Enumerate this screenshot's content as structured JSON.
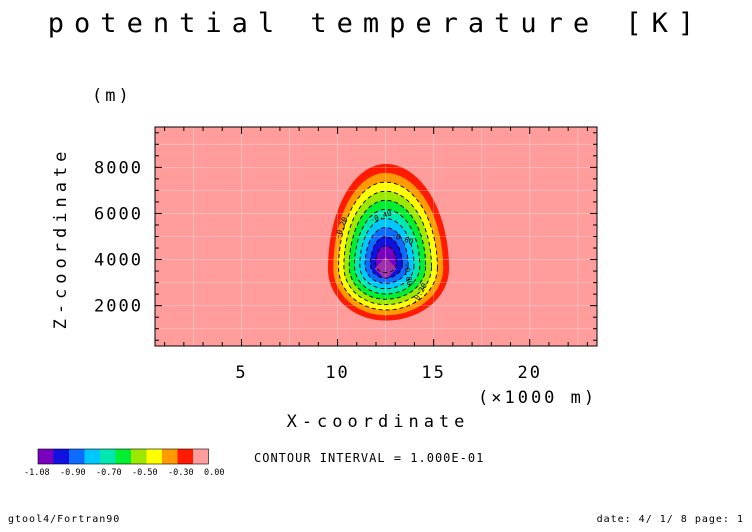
{
  "chart_data": {
    "type": "heatmap",
    "subtype": "filled-contour",
    "title": "potential temperature [K]",
    "xlabel": "X-coordinate",
    "ylabel": "Z-coordinate",
    "x_unit": "(×1000 m)",
    "y_unit": "(m)",
    "xlim": [
      0.5,
      23.5
    ],
    "ylim": [
      250,
      9750
    ],
    "x_ticks": [
      5,
      10,
      15,
      20
    ],
    "y_ticks": [
      2000,
      4000,
      6000,
      8000
    ],
    "anomaly": {
      "center_x": 12.5,
      "center_z": 3600,
      "min_value": -1.08,
      "outer_extent_x": [
        9.5,
        15.8
      ],
      "outer_extent_z": [
        1350,
        8150
      ],
      "background_value": 0.0
    },
    "contour_levels": [
      -1.08,
      -1.0,
      -0.9,
      -0.8,
      -0.7,
      -0.6,
      -0.5,
      -0.4,
      -0.3,
      -0.2,
      -0.1,
      0.0
    ],
    "contour_labels": [
      "-0.20",
      "-0.40",
      "-0.60",
      "-0.80",
      "-0.20"
    ],
    "colorbar": {
      "colors": [
        "#7a00bf",
        "#1010e0",
        "#0d6cff",
        "#00c8ff",
        "#00e8b0",
        "#00ef30",
        "#9ce800",
        "#ffff00",
        "#ff9a00",
        "#ff1a00",
        "#ff9d9d"
      ],
      "tick_labels": [
        "-1.08",
        "-0.90",
        "-0.70",
        "-0.50",
        "-0.30",
        "0.00"
      ]
    },
    "contour_interval_text": "CONTOUR INTERVAL = 1.000E-01",
    "background_color": "#ff9d9d"
  },
  "footer": {
    "left": "gtool4/Fortran90",
    "right": "date: 4/ 1/ 8 page: 1"
  }
}
